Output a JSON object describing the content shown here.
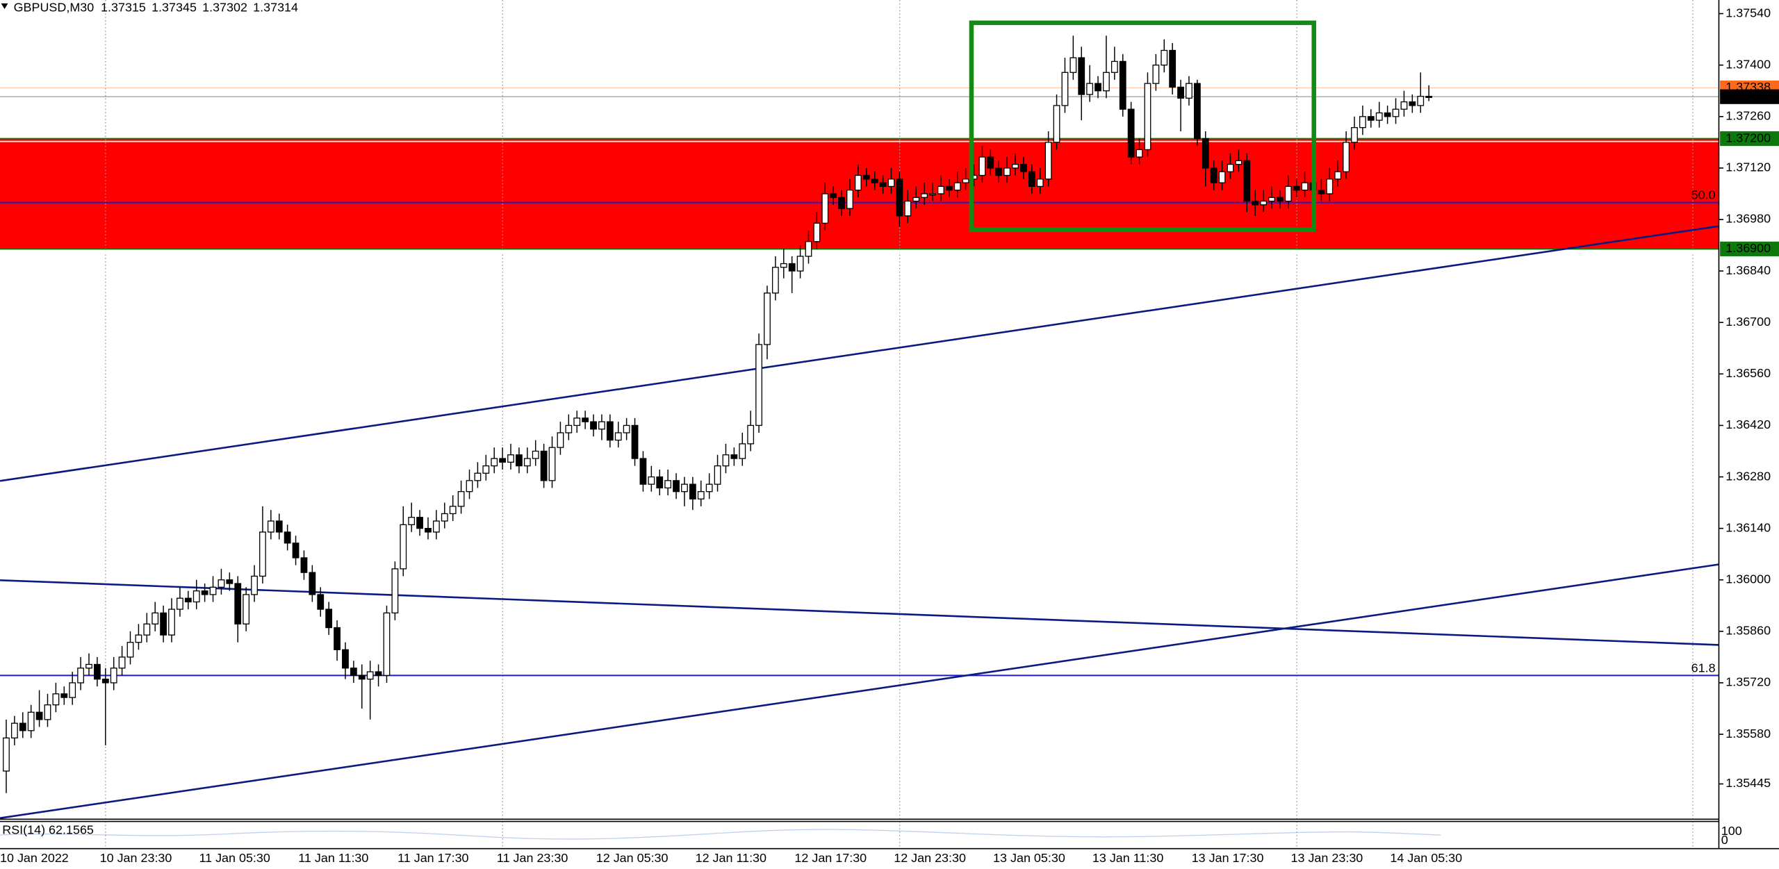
{
  "chart_data": {
    "type": "candlestick",
    "title": "GBPUSD,M30",
    "quote": [
      1.37315,
      1.37345,
      1.37302,
      1.37314
    ],
    "categories": [
      "10 Jan 2022",
      null,
      null,
      null,
      null,
      null,
      null,
      null,
      null,
      null,
      null,
      null,
      "10 Jan 23:30",
      null,
      null,
      null,
      null,
      null,
      null,
      null,
      null,
      null,
      null,
      null,
      "11 Jan 05:30",
      null,
      null,
      null,
      null,
      null,
      null,
      null,
      null,
      null,
      null,
      null,
      "11 Jan 11:30",
      null,
      null,
      null,
      null,
      null,
      null,
      null,
      null,
      null,
      null,
      null,
      "11 Jan 17:30",
      null,
      null,
      null,
      null,
      null,
      null,
      null,
      null,
      null,
      null,
      null,
      "11 Jan 23:30",
      null,
      null,
      null,
      null,
      null,
      null,
      null,
      null,
      null,
      null,
      null,
      "12 Jan 05:30",
      null,
      null,
      null,
      null,
      null,
      null,
      null,
      null,
      null,
      null,
      null,
      "12 Jan 11:30",
      null,
      null,
      null,
      null,
      null,
      null,
      null,
      null,
      null,
      null,
      null,
      "12 Jan 17:30",
      null,
      null,
      null,
      null,
      null,
      null,
      null,
      null,
      null,
      null,
      null,
      "12 Jan 23:30",
      null,
      null,
      null,
      null,
      null,
      null,
      null,
      null,
      null,
      null,
      null,
      "13 Jan 05:30",
      null,
      null,
      null,
      null,
      null,
      null,
      null,
      null,
      null,
      null,
      null,
      "13 Jan 11:30",
      null,
      null,
      null,
      null,
      null,
      null,
      null,
      null,
      null,
      null,
      null,
      "13 Jan 17:30",
      null,
      null,
      null,
      null,
      null,
      null,
      null,
      null,
      null,
      null,
      null,
      "13 Jan 23:30",
      null,
      null,
      null,
      null,
      null,
      null,
      null,
      null,
      null,
      null,
      null,
      "14 Jan 05:30",
      null,
      null,
      null,
      null
    ],
    "open": [
      1.3548,
      1.3557,
      1.3561,
      1.3559,
      1.3564,
      1.3562,
      1.3566,
      1.3569,
      1.3568,
      1.3572,
      1.3576,
      1.3577,
      1.3573,
      1.3572,
      1.3576,
      1.3579,
      1.3583,
      1.3585,
      1.3588,
      1.3591,
      1.3585,
      1.3592,
      1.3595,
      1.3594,
      1.3597,
      1.3596,
      1.3598,
      1.36,
      1.3599,
      1.3588,
      1.3596,
      1.3601,
      1.3613,
      1.3616,
      1.3613,
      1.361,
      1.3606,
      1.3602,
      1.3596,
      1.3592,
      1.3587,
      1.3581,
      1.3576,
      1.3574,
      1.3573,
      1.3575,
      1.3574,
      1.3591,
      1.3603,
      1.3615,
      1.3617,
      1.3614,
      1.3613,
      1.3616,
      1.3618,
      1.362,
      1.3624,
      1.3627,
      1.3629,
      1.3631,
      1.3633,
      1.3632,
      1.3634,
      1.3631,
      1.3633,
      1.3635,
      1.3627,
      1.3636,
      1.364,
      1.3642,
      1.3644,
      1.3643,
      1.3641,
      1.3643,
      1.3638,
      1.364,
      1.3642,
      1.3633,
      1.3626,
      1.3628,
      1.3625,
      1.3627,
      1.3624,
      1.3626,
      1.3622,
      1.3624,
      1.3626,
      1.3631,
      1.3634,
      1.3633,
      1.3637,
      1.3642,
      1.3664,
      1.3678,
      1.3685,
      1.3686,
      1.3684,
      1.3688,
      1.3692,
      1.3697,
      1.3705,
      1.3704,
      1.3701,
      1.3706,
      1.371,
      1.3709,
      1.3708,
      1.3707,
      1.3709,
      1.3699,
      1.3703,
      1.3704,
      1.3705,
      1.3705,
      1.3707,
      1.3706,
      1.3708,
      1.3709,
      1.371,
      1.3715,
      1.3712,
      1.371,
      1.3712,
      1.3713,
      1.3711,
      1.3707,
      1.3709,
      1.3719,
      1.3729,
      1.3738,
      1.3742,
      1.3732,
      1.3735,
      1.3733,
      1.3738,
      1.3741,
      1.3728,
      1.3715,
      1.3717,
      1.3735,
      1.374,
      1.3744,
      1.3734,
      1.3731,
      1.3735,
      1.372,
      1.3712,
      1.3708,
      1.3711,
      1.3713,
      1.3714,
      1.3703,
      1.3702,
      1.3703,
      1.3704,
      1.3703,
      1.3707,
      1.3706,
      1.3708,
      1.3706,
      1.3705,
      1.3709,
      1.3711,
      1.3719,
      1.3723,
      1.3726,
      1.3725,
      1.3727,
      1.3726,
      1.3728,
      1.373,
      1.3729,
      1.37315
    ],
    "high": [
      1.3562,
      1.3563,
      1.3564,
      1.3566,
      1.357,
      1.3569,
      1.3572,
      1.3571,
      1.3575,
      1.3579,
      1.358,
      1.3579,
      1.3576,
      1.3579,
      1.3582,
      1.3586,
      1.3588,
      1.3591,
      1.3594,
      1.3593,
      1.3595,
      1.3598,
      1.3597,
      1.36,
      1.3599,
      1.3601,
      1.3603,
      1.3602,
      1.3601,
      1.3598,
      1.3604,
      1.362,
      1.3619,
      1.3618,
      1.3615,
      1.3612,
      1.3608,
      1.3604,
      1.3598,
      1.3594,
      1.3589,
      1.3583,
      1.3578,
      1.3577,
      1.3578,
      1.3577,
      1.3593,
      1.3605,
      1.362,
      1.3621,
      1.3619,
      1.3617,
      1.3619,
      1.3621,
      1.3623,
      1.3627,
      1.363,
      1.3632,
      1.3634,
      1.3636,
      1.3636,
      1.3637,
      1.3636,
      1.3636,
      1.3638,
      1.3637,
      1.3639,
      1.3643,
      1.3645,
      1.3646,
      1.3646,
      1.3645,
      1.3645,
      1.3645,
      1.3643,
      1.3644,
      1.3644,
      1.3635,
      1.3631,
      1.363,
      1.363,
      1.3629,
      1.3628,
      1.3628,
      1.3627,
      1.3629,
      1.3634,
      1.3637,
      1.3636,
      1.364,
      1.3646,
      1.3667,
      1.368,
      1.3688,
      1.369,
      1.3688,
      1.3691,
      1.3695,
      1.37,
      1.3708,
      1.3707,
      1.3706,
      1.3709,
      1.3713,
      1.3712,
      1.3711,
      1.371,
      1.3712,
      1.3711,
      1.3706,
      1.3707,
      1.3708,
      1.3708,
      1.371,
      1.3709,
      1.3711,
      1.3712,
      1.3713,
      1.3718,
      1.3717,
      1.3714,
      1.3715,
      1.3716,
      1.3715,
      1.3713,
      1.3712,
      1.3722,
      1.3732,
      1.3742,
      1.3748,
      1.3745,
      1.374,
      1.3737,
      1.3748,
      1.3745,
      1.3743,
      1.373,
      1.372,
      1.3738,
      1.3743,
      1.3747,
      1.3746,
      1.3736,
      1.3737,
      1.3736,
      1.3722,
      1.3714,
      1.3714,
      1.3716,
      1.3717,
      1.3716,
      1.3706,
      1.3706,
      1.3707,
      1.3706,
      1.371,
      1.3709,
      1.3711,
      1.371,
      1.3709,
      1.3712,
      1.3714,
      1.3722,
      1.3726,
      1.3729,
      1.3728,
      1.373,
      1.3729,
      1.3731,
      1.3733,
      1.3732,
      1.3738,
      1.37345
    ],
    "low": [
      1.3542,
      1.3555,
      1.3557,
      1.3557,
      1.356,
      1.356,
      1.3564,
      1.3566,
      1.3566,
      1.357,
      1.3574,
      1.3571,
      1.3555,
      1.357,
      1.3574,
      1.3577,
      1.3581,
      1.3583,
      1.3586,
      1.3583,
      1.3583,
      1.359,
      1.3592,
      1.3592,
      1.3594,
      1.3594,
      1.3596,
      1.3597,
      1.3583,
      1.3586,
      1.3594,
      1.3599,
      1.3611,
      1.3611,
      1.3608,
      1.3604,
      1.36,
      1.3594,
      1.359,
      1.3585,
      1.3578,
      1.3573,
      1.3572,
      1.3565,
      1.3562,
      1.3571,
      1.3572,
      1.3589,
      1.3601,
      1.3613,
      1.3612,
      1.3611,
      1.3611,
      1.3614,
      1.3616,
      1.3618,
      1.3622,
      1.3625,
      1.3627,
      1.3629,
      1.363,
      1.363,
      1.3629,
      1.3629,
      1.3631,
      1.3625,
      1.3625,
      1.3634,
      1.3638,
      1.364,
      1.3641,
      1.3639,
      1.3638,
      1.3636,
      1.3636,
      1.3638,
      1.3631,
      1.3624,
      1.3624,
      1.3623,
      1.3623,
      1.3622,
      1.362,
      1.3619,
      1.362,
      1.3622,
      1.3624,
      1.3629,
      1.3631,
      1.3631,
      1.3635,
      1.364,
      1.366,
      1.3676,
      1.3682,
      1.3678,
      1.3682,
      1.3686,
      1.369,
      1.3695,
      1.3702,
      1.3699,
      1.3699,
      1.3704,
      1.3707,
      1.3706,
      1.3705,
      1.3705,
      1.3696,
      1.3697,
      1.3701,
      1.3702,
      1.3703,
      1.3703,
      1.3704,
      1.3704,
      1.3706,
      1.3707,
      1.3708,
      1.371,
      1.3708,
      1.3708,
      1.371,
      1.3709,
      1.3705,
      1.3705,
      1.3707,
      1.3717,
      1.3727,
      1.3736,
      1.3725,
      1.373,
      1.3731,
      1.3731,
      1.3736,
      1.3726,
      1.3713,
      1.3713,
      1.3715,
      1.3733,
      1.3738,
      1.3732,
      1.3722,
      1.3729,
      1.3718,
      1.3707,
      1.3706,
      1.3706,
      1.3709,
      1.3711,
      1.37,
      1.3699,
      1.37,
      1.3701,
      1.3701,
      1.3701,
      1.3704,
      1.3704,
      1.3704,
      1.3703,
      1.3703,
      1.3707,
      1.3709,
      1.3717,
      1.3721,
      1.3723,
      1.3723,
      1.3724,
      1.3724,
      1.3726,
      1.3727,
      1.3727,
      1.37302
    ],
    "close": [
      1.3557,
      1.3561,
      1.3559,
      1.3564,
      1.3562,
      1.3566,
      1.3569,
      1.3568,
      1.3572,
      1.3576,
      1.3577,
      1.3573,
      1.3572,
      1.3576,
      1.3579,
      1.3583,
      1.3585,
      1.3588,
      1.3591,
      1.3585,
      1.3592,
      1.3595,
      1.3594,
      1.3597,
      1.3596,
      1.3598,
      1.36,
      1.3599,
      1.3588,
      1.3596,
      1.3601,
      1.3613,
      1.3616,
      1.3613,
      1.361,
      1.3606,
      1.3602,
      1.3596,
      1.3592,
      1.3587,
      1.3581,
      1.3576,
      1.3574,
      1.3573,
      1.3575,
      1.3574,
      1.3591,
      1.3603,
      1.3615,
      1.3617,
      1.3614,
      1.3613,
      1.3616,
      1.3618,
      1.362,
      1.3624,
      1.3627,
      1.3629,
      1.3631,
      1.3633,
      1.3632,
      1.3634,
      1.3631,
      1.3633,
      1.3635,
      1.3627,
      1.3636,
      1.364,
      1.3642,
      1.3644,
      1.3643,
      1.3641,
      1.3643,
      1.3638,
      1.364,
      1.3642,
      1.3633,
      1.3626,
      1.3628,
      1.3625,
      1.3627,
      1.3624,
      1.3626,
      1.3622,
      1.3624,
      1.3626,
      1.3631,
      1.3634,
      1.3633,
      1.3637,
      1.3642,
      1.3664,
      1.3678,
      1.3685,
      1.3686,
      1.3684,
      1.3688,
      1.3692,
      1.3697,
      1.3705,
      1.3704,
      1.3701,
      1.3706,
      1.371,
      1.3709,
      1.3708,
      1.3707,
      1.3709,
      1.3699,
      1.3703,
      1.3704,
      1.3705,
      1.3705,
      1.3707,
      1.3706,
      1.3708,
      1.3709,
      1.371,
      1.3715,
      1.3712,
      1.371,
      1.3712,
      1.3713,
      1.3711,
      1.3707,
      1.3709,
      1.3719,
      1.3729,
      1.3738,
      1.3742,
      1.3732,
      1.3735,
      1.3733,
      1.3738,
      1.3741,
      1.3728,
      1.3715,
      1.3717,
      1.3735,
      1.374,
      1.3744,
      1.3734,
      1.3731,
      1.3735,
      1.372,
      1.3712,
      1.3708,
      1.3711,
      1.3713,
      1.3714,
      1.3703,
      1.3702,
      1.3703,
      1.3704,
      1.3703,
      1.3707,
      1.3706,
      1.3708,
      1.3706,
      1.3705,
      1.3709,
      1.3711,
      1.3719,
      1.3723,
      1.3726,
      1.3725,
      1.3727,
      1.3726,
      1.3728,
      1.373,
      1.3729,
      1.37315,
      1.37314
    ],
    "up_color": "#ffffff",
    "down_color": "#000000",
    "wick_color": "#000000",
    "ylim": [
      1.35349,
      1.37577
    ],
    "yticks": [
      {
        "value": 1.3754,
        "label": "1.37540"
      },
      {
        "value": 1.374,
        "label": "1.37400"
      },
      {
        "value": 1.3726,
        "label": "1.37260"
      },
      {
        "value": 1.3712,
        "label": "1.37120"
      },
      {
        "value": 1.3698,
        "label": "1.36980"
      },
      {
        "value": 1.3684,
        "label": "1.36840"
      },
      {
        "value": 1.367,
        "label": "1.36700"
      },
      {
        "value": 1.3656,
        "label": "1.36560"
      },
      {
        "value": 1.3642,
        "label": "1.36420"
      },
      {
        "value": 1.3628,
        "label": "1.36280"
      },
      {
        "value": 1.3614,
        "label": "1.36140"
      },
      {
        "value": 1.36,
        "label": "1.36000"
      },
      {
        "value": 1.3586,
        "label": "1.35860"
      },
      {
        "value": 1.3572,
        "label": "1.35720"
      },
      {
        "value": 1.3558,
        "label": "1.35580"
      },
      1.35445
    ],
    "zone": {
      "from": 1.369,
      "to": 1.372,
      "color": "#ff0000"
    },
    "price_lines": [
      {
        "value": 1.37338,
        "color": "#ff6a1a"
      },
      {
        "value": 1.37314,
        "color": "#000000"
      },
      {
        "value": 1.372,
        "label": "1.37200",
        "color": "#0b7a0b"
      },
      {
        "value": 1.369,
        "label": "1.36900",
        "color": "#0b7a0b"
      }
    ],
    "fib_levels": [
      {
        "price": 1.37026,
        "level": "50.0"
      },
      {
        "price": 1.3574,
        "level": "61.8"
      }
    ],
    "fib_color": "#1c1ccc",
    "trendlines": [
      {
        "x": [
          -0.75,
          207.1
        ],
        "y": [
          1.36269,
          1.36962
        ]
      },
      {
        "x": [
          -0.75,
          207.1
        ],
        "y": [
          1.35999,
          1.35823
        ]
      },
      {
        "x": [
          -0.75,
          207.1
        ],
        "y": [
          1.35352,
          1.36042
        ]
      }
    ],
    "trendline_color": "#0b1a80",
    "rectangle": {
      "x": [
        116.7,
        158.1
      ],
      "y": [
        1.36952,
        1.37515
      ],
      "color": "#138a13"
    },
    "rsi": {
      "label": "RSI(14) 62.1565",
      "yticks": [
        100,
        0
      ]
    }
  }
}
